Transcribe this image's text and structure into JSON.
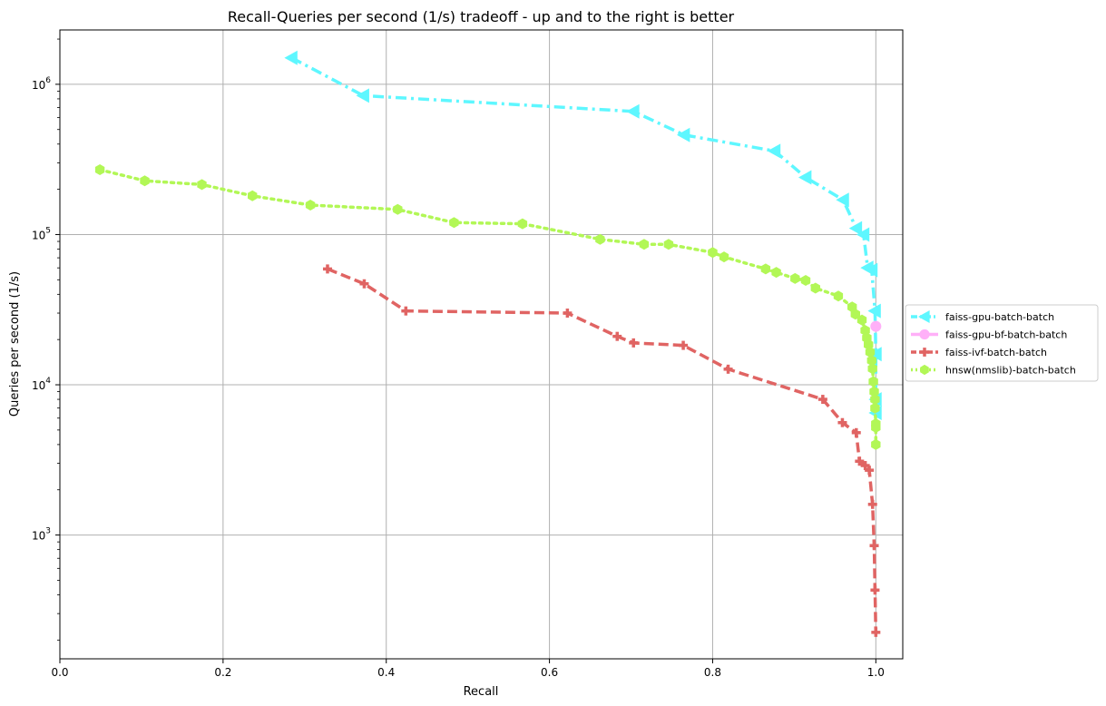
{
  "chart_data": {
    "type": "line",
    "title": "Recall-Queries per second (1/s) tradeoff - up and to the right is better",
    "xlabel": "Recall",
    "ylabel": "Queries per second (1/s)",
    "xscale": "linear",
    "yscale": "log",
    "xlim": [
      0.0,
      1.033
    ],
    "ylim": [
      150,
      2300000
    ],
    "x_ticks": [
      {
        "value": 0.0,
        "label": "0.0"
      },
      {
        "value": 0.2,
        "label": "0.2"
      },
      {
        "value": 0.4,
        "label": "0.4"
      },
      {
        "value": 0.6,
        "label": "0.6"
      },
      {
        "value": 0.8,
        "label": "0.8"
      },
      {
        "value": 1.0,
        "label": "1.0"
      }
    ],
    "y_ticks": [
      {
        "value": 1000,
        "base": "10",
        "exp": "3"
      },
      {
        "value": 10000,
        "base": "10",
        "exp": "4"
      },
      {
        "value": 100000,
        "base": "10",
        "exp": "5"
      },
      {
        "value": 1000000,
        "base": "10",
        "exp": "6"
      }
    ],
    "grid": true,
    "legend_position": "outside-right",
    "series": [
      {
        "name": "faiss-gpu-batch-batch",
        "color": "#5ef7ff",
        "line_style": "dashdot",
        "marker": "triangle-left",
        "points": [
          [
            0.284,
            1500000
          ],
          [
            0.372,
            840000
          ],
          [
            0.703,
            660000
          ],
          [
            0.765,
            460000
          ],
          [
            0.876,
            360000
          ],
          [
            0.914,
            240000
          ],
          [
            0.96,
            170000
          ],
          [
            0.976,
            110000
          ],
          [
            0.985,
            100000
          ],
          [
            0.99,
            60000
          ],
          [
            0.995,
            58000
          ],
          [
            0.999,
            31000
          ],
          [
            1.0,
            16000
          ],
          [
            1.0,
            8000
          ],
          [
            1.0,
            6500
          ]
        ]
      },
      {
        "name": "faiss-gpu-bf-batch-batch",
        "color": "#ffb0f8",
        "line_style": "solid",
        "marker": "circle",
        "points": [
          [
            1.0,
            24500
          ]
        ]
      },
      {
        "name": "faiss-ivf-batch-batch",
        "color": "#e06463",
        "line_style": "dashed",
        "marker": "plus",
        "points": [
          [
            0.328,
            59000
          ],
          [
            0.373,
            47000
          ],
          [
            0.424,
            31000
          ],
          [
            0.622,
            30000
          ],
          [
            0.683,
            21000
          ],
          [
            0.703,
            19000
          ],
          [
            0.764,
            18300
          ],
          [
            0.819,
            12700
          ],
          [
            0.935,
            8000
          ],
          [
            0.959,
            5600
          ],
          [
            0.976,
            4800
          ],
          [
            0.98,
            3100
          ],
          [
            0.987,
            2900
          ],
          [
            0.992,
            2700
          ],
          [
            0.996,
            1600
          ],
          [
            0.998,
            850
          ],
          [
            0.999,
            430
          ],
          [
            1.0,
            225
          ]
        ]
      },
      {
        "name": "hnsw(nmslib)-batch-batch",
        "color": "#b2f756",
        "line_style": "dotted",
        "marker": "hexagon",
        "points": [
          [
            0.049,
            270000
          ],
          [
            0.104,
            228000
          ],
          [
            0.174,
            215000
          ],
          [
            0.236,
            181000
          ],
          [
            0.307,
            157000
          ],
          [
            0.414,
            147000
          ],
          [
            0.483,
            120000
          ],
          [
            0.567,
            118000
          ],
          [
            0.662,
            93000
          ],
          [
            0.716,
            86000
          ],
          [
            0.746,
            86000
          ],
          [
            0.8,
            76000
          ],
          [
            0.814,
            71000
          ],
          [
            0.865,
            59000
          ],
          [
            0.878,
            56000
          ],
          [
            0.901,
            51000
          ],
          [
            0.914,
            49500
          ],
          [
            0.926,
            44000
          ],
          [
            0.954,
            39000
          ],
          [
            0.971,
            33000
          ],
          [
            0.975,
            29500
          ],
          [
            0.983,
            27000
          ],
          [
            0.987,
            23000
          ],
          [
            0.989,
            20500
          ],
          [
            0.991,
            18500
          ],
          [
            0.993,
            16500
          ],
          [
            0.995,
            14500
          ],
          [
            0.996,
            12800
          ],
          [
            0.997,
            10500
          ],
          [
            0.998,
            9000
          ],
          [
            0.999,
            8000
          ],
          [
            0.999,
            7000
          ],
          [
            1.0,
            5500
          ],
          [
            1.0,
            5200
          ],
          [
            1.0,
            4000
          ]
        ]
      }
    ]
  }
}
